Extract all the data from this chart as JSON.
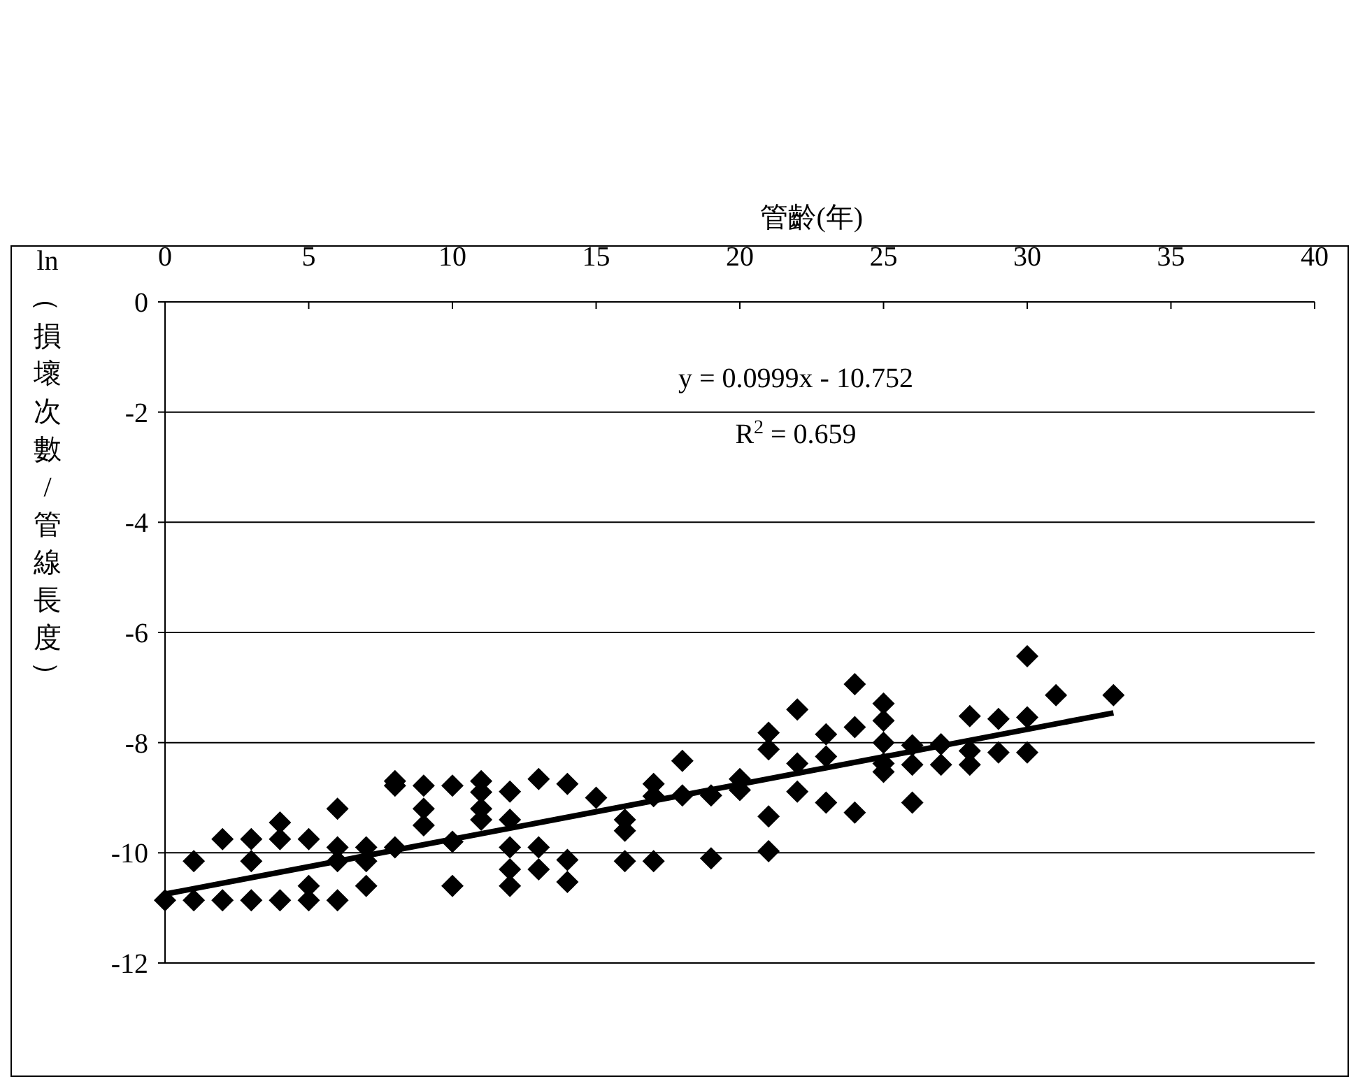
{
  "chart_data": {
    "type": "scatter",
    "xlabel": "管齡(年)",
    "ylabel": "ln（損壞次數/管線長度）",
    "xlim": [
      0,
      40
    ],
    "xticks": [
      0,
      5,
      10,
      15,
      20,
      25,
      30,
      35,
      40
    ],
    "ylim": [
      -12,
      0
    ],
    "yticks": [
      -12,
      -10,
      -8,
      -6,
      -4,
      -2,
      0
    ],
    "grid": "y",
    "series": [
      {
        "marker": "diamond",
        "color": "#000000",
        "x": [
          0,
          1,
          1,
          2,
          2,
          3,
          3,
          3,
          4,
          4,
          4,
          5,
          5,
          5,
          6,
          6,
          6,
          6,
          7,
          7,
          7,
          8,
          8,
          8,
          9,
          9,
          9,
          10,
          10,
          10,
          11,
          11,
          11,
          11,
          12,
          12,
          12,
          12,
          12,
          13,
          13,
          13,
          14,
          14,
          14,
          15,
          16,
          16,
          16,
          17,
          17,
          17,
          18,
          18,
          19,
          19,
          20,
          20,
          21,
          21,
          21,
          21,
          22,
          22,
          22,
          23,
          23,
          23,
          24,
          24,
          24,
          25,
          25,
          25,
          25,
          25,
          26,
          26,
          26,
          27,
          27,
          28,
          28,
          28,
          29,
          29,
          30,
          30,
          30,
          31,
          33
        ],
        "values": [
          -10.86,
          -10.86,
          -10.15,
          -10.86,
          -9.75,
          -10.86,
          -9.75,
          -10.15,
          -10.86,
          -9.75,
          -9.45,
          -10.86,
          -10.6,
          -9.75,
          -10.86,
          -10.15,
          -9.9,
          -9.2,
          -10.6,
          -10.15,
          -9.9,
          -9.9,
          -8.78,
          -8.7,
          -8.78,
          -9.2,
          -9.5,
          -8.78,
          -9.8,
          -10.6,
          -8.7,
          -8.9,
          -9.2,
          -9.4,
          -8.89,
          -9.4,
          -9.9,
          -10.3,
          -10.6,
          -8.66,
          -9.9,
          -10.3,
          -8.75,
          -10.13,
          -10.53,
          -9.0,
          -9.4,
          -9.6,
          -10.15,
          -8.75,
          -8.97,
          -10.15,
          -8.33,
          -8.96,
          -8.96,
          -10.1,
          -8.66,
          -8.86,
          -7.82,
          -8.12,
          -9.34,
          -9.97,
          -7.4,
          -8.38,
          -8.89,
          -7.85,
          -8.25,
          -9.09,
          -6.94,
          -7.72,
          -9.27,
          -7.29,
          -7.6,
          -8.0,
          -8.38,
          -8.53,
          -8.05,
          -8.4,
          -9.09,
          -8.03,
          -8.4,
          -7.52,
          -8.15,
          -8.4,
          -7.57,
          -8.18,
          -6.43,
          -7.54,
          -8.18,
          -7.14,
          -7.14
        ]
      },
      {
        "type": "line",
        "marker": "none",
        "color": "#000000",
        "x": [
          0,
          33
        ],
        "values": [
          -10.75,
          -7.46
        ]
      }
    ],
    "annotations": [
      "y = 0.0999x - 10.752",
      "R$^{2}$ = 0.659"
    ]
  }
}
